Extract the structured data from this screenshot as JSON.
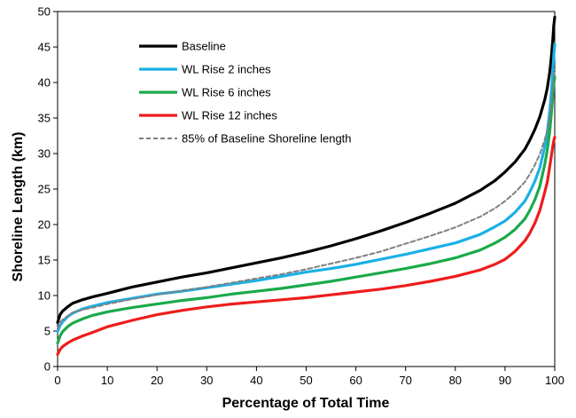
{
  "chart_data": {
    "type": "line",
    "xlabel": "Percentage of Total Time",
    "ylabel": "Shoreline Length (km)",
    "xlim": [
      0,
      100
    ],
    "ylim": [
      0,
      50
    ],
    "x_ticks": [
      0,
      10,
      20,
      30,
      40,
      50,
      60,
      70,
      80,
      90,
      100
    ],
    "y_ticks": [
      0,
      5,
      10,
      15,
      20,
      25,
      30,
      35,
      40,
      45,
      50
    ],
    "grid": false,
    "legend_position": "top-left",
    "series": [
      {
        "name": "Baseline",
        "color": "#000000",
        "dash": "solid",
        "x": [
          0,
          0.5,
          1,
          2,
          3,
          5,
          7,
          10,
          15,
          20,
          25,
          30,
          35,
          40,
          45,
          50,
          55,
          60,
          65,
          70,
          75,
          80,
          85,
          88,
          90,
          92,
          94,
          95,
          96,
          97,
          98,
          98.5,
          99,
          99.3,
          99.6,
          99.8,
          100
        ],
        "y": [
          6.2,
          7.3,
          7.8,
          8.4,
          8.9,
          9.4,
          9.8,
          10.3,
          11.2,
          11.9,
          12.6,
          13.2,
          13.9,
          14.6,
          15.3,
          16.1,
          17.0,
          18.0,
          19.1,
          20.3,
          21.6,
          23.0,
          24.8,
          26.2,
          27.4,
          28.8,
          30.6,
          31.9,
          33.4,
          35.2,
          37.6,
          39.2,
          41.5,
          43.5,
          46.0,
          48.0,
          49.2
        ]
      },
      {
        "name": "WL Rise 2 inches",
        "color": "#1ab0e6",
        "dash": "solid",
        "x": [
          0,
          0.5,
          1,
          2,
          3,
          5,
          7,
          10,
          15,
          20,
          25,
          30,
          35,
          40,
          45,
          50,
          55,
          60,
          65,
          70,
          75,
          80,
          85,
          88,
          90,
          92,
          94,
          95,
          96,
          97,
          98,
          98.5,
          99,
          99.3,
          99.6,
          99.8,
          100
        ],
        "y": [
          4.9,
          5.8,
          6.3,
          7.0,
          7.5,
          8.1,
          8.5,
          9.0,
          9.6,
          10.2,
          10.6,
          11.1,
          11.6,
          12.1,
          12.7,
          13.3,
          13.8,
          14.4,
          15.1,
          15.8,
          16.6,
          17.4,
          18.6,
          19.7,
          20.5,
          21.7,
          23.3,
          24.6,
          26.1,
          28.0,
          31.0,
          33.0,
          36.0,
          38.5,
          41.5,
          43.8,
          45.4
        ]
      },
      {
        "name": "WL Rise 6 inches",
        "color": "#1aaa4a",
        "dash": "solid",
        "x": [
          0,
          0.5,
          1,
          2,
          3,
          5,
          7,
          10,
          15,
          20,
          25,
          30,
          35,
          40,
          45,
          50,
          55,
          60,
          65,
          70,
          75,
          80,
          85,
          88,
          90,
          92,
          94,
          95,
          96,
          97,
          98,
          98.5,
          99,
          99.3,
          99.6,
          99.8,
          100
        ],
        "y": [
          3.3,
          4.3,
          4.9,
          5.6,
          6.1,
          6.7,
          7.2,
          7.7,
          8.3,
          8.8,
          9.3,
          9.7,
          10.2,
          10.6,
          11.0,
          11.5,
          12.0,
          12.6,
          13.2,
          13.8,
          14.5,
          15.3,
          16.4,
          17.4,
          18.2,
          19.3,
          20.8,
          22.0,
          23.5,
          25.4,
          28.5,
          30.5,
          33.2,
          35.5,
          38.0,
          39.8,
          40.8
        ]
      },
      {
        "name": "WL Rise 12 inches",
        "color": "#ee1c1c",
        "dash": "solid",
        "x": [
          0,
          0.5,
          1,
          2,
          3,
          5,
          7,
          10,
          15,
          20,
          25,
          30,
          35,
          40,
          45,
          50,
          55,
          60,
          65,
          70,
          75,
          80,
          85,
          88,
          90,
          92,
          94,
          95,
          96,
          97,
          98,
          98.5,
          99,
          99.3,
          99.6,
          99.8,
          100
        ],
        "y": [
          1.7,
          2.4,
          2.8,
          3.3,
          3.7,
          4.3,
          4.8,
          5.6,
          6.5,
          7.3,
          7.9,
          8.4,
          8.8,
          9.1,
          9.4,
          9.7,
          10.1,
          10.5,
          10.9,
          11.4,
          12.0,
          12.7,
          13.6,
          14.4,
          15.1,
          16.2,
          17.7,
          18.8,
          20.2,
          22.0,
          24.6,
          26.0,
          28.2,
          29.6,
          31.0,
          31.8,
          32.3
        ]
      },
      {
        "name": "85% of Baseline Shoreline length",
        "color": "#808080",
        "dash": "dashed",
        "x": [
          0,
          0.5,
          1,
          2,
          3,
          5,
          7,
          10,
          15,
          20,
          25,
          30,
          35,
          40,
          45,
          50,
          55,
          60,
          65,
          70,
          75,
          80,
          85,
          88,
          90,
          92,
          94,
          95,
          96,
          97,
          98,
          98.5,
          99,
          99.3,
          99.6,
          99.8,
          100
        ],
        "y": [
          5.3,
          6.2,
          6.6,
          7.1,
          7.6,
          8.0,
          8.3,
          8.8,
          9.5,
          10.1,
          10.7,
          11.2,
          11.8,
          12.4,
          13.0,
          13.7,
          14.5,
          15.3,
          16.2,
          17.3,
          18.4,
          19.6,
          21.1,
          22.3,
          23.3,
          24.5,
          26.0,
          27.1,
          28.4,
          29.9,
          32.0,
          33.3,
          35.3,
          37.0,
          39.1,
          40.8,
          41.8
        ]
      }
    ]
  }
}
